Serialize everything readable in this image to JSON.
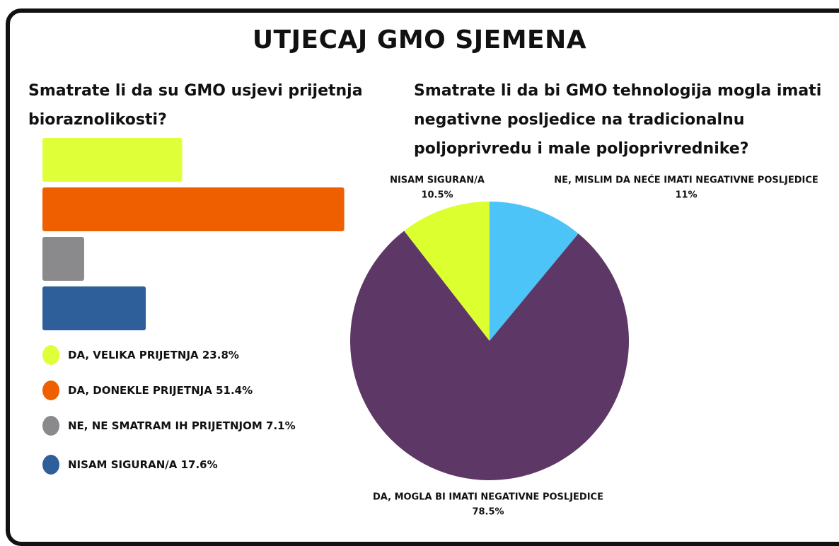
{
  "title": "UTJECAJ GMO SJEMENA",
  "chart_data": [
    {
      "type": "bar",
      "title": "Smatrate li da su GMO usjevi prijetnja bioraznolikosti?",
      "categories": [
        "DA, VELIKA PRIJETNJA",
        "DA, DONEKLE PRIJETNJA",
        "NE, NE SMATRAM IH PRIJETNJOM",
        "NISAM SIGURAN/A"
      ],
      "values": [
        23.8,
        51.4,
        7.1,
        17.6
      ],
      "value_labels": [
        "23.8%",
        "51.4%",
        "7.1%",
        "17.6%"
      ],
      "colors": [
        "#dfff38",
        "#ef5f00",
        "#8a8a8c",
        "#2f5f9b"
      ]
    },
    {
      "type": "pie",
      "title": "Smatrate li da bi GMO tehnologija mogla imati negativne posljedice na tradicionalnu poljoprivredu i male poljoprivrednike?",
      "categories": [
        "NE, MISLIM DA NEĆE IMATI NEGATIVNE POSLJEDICE",
        "DA, MOGLA BI IMATI NEGATIVNE POSLJEDICE",
        "NISAM SIGURAN/A"
      ],
      "values": [
        11,
        78.5,
        10.5
      ],
      "value_labels": [
        "11%",
        "78.5%",
        "10.5%"
      ],
      "colors": [
        "#4cc4f8",
        "#5d3765",
        "#dcff2f"
      ]
    }
  ]
}
